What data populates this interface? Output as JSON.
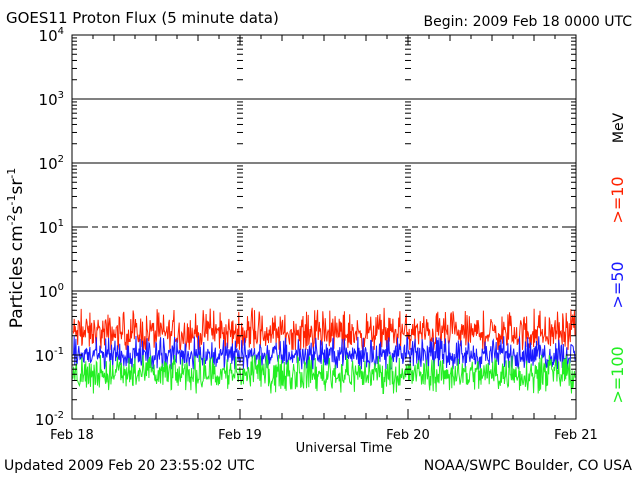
{
  "header": {
    "title": "GOES11 Proton Flux (5 minute data)",
    "begin": "Begin: 2009 Feb 18 0000 UTC"
  },
  "footer": {
    "updated": "Updated 2009 Feb 20 23:55:02 UTC",
    "credit": "NOAA/SWPC Boulder, CO USA"
  },
  "colors": {
    "ge10": "#ff2200",
    "ge50": "#1a1aff",
    "ge100": "#22ee22",
    "mev_label": "#000000"
  },
  "chart_data": {
    "type": "line",
    "title": "GOES11 Proton Flux (5 minute data)",
    "xlabel": "Universal Time",
    "ylabel": "Particles cm⁻²s⁻¹sr⁻¹",
    "y_scale": "log",
    "ylim": [
      0.01,
      10000
    ],
    "y_ticks": [
      {
        "value": 0.01,
        "base": "10",
        "exp": "-2"
      },
      {
        "value": 0.1,
        "base": "10",
        "exp": "-1"
      },
      {
        "value": 1,
        "base": "10",
        "exp": "0"
      },
      {
        "value": 10,
        "base": "10",
        "exp": "1"
      },
      {
        "value": 100,
        "base": "10",
        "exp": "2"
      },
      {
        "value": 1000,
        "base": "10",
        "exp": "3"
      },
      {
        "value": 10000,
        "base": "10",
        "exp": "4"
      }
    ],
    "x_ticks": [
      "Feb 18",
      "Feb 19",
      "Feb 20",
      "Feb 21"
    ],
    "xlim": [
      "2009-02-18",
      "2009-02-21"
    ],
    "threshold_lines": [
      {
        "value": 10,
        "style": "dashed"
      },
      {
        "value": 1,
        "style": "solid"
      },
      {
        "value": 100,
        "style": "solid"
      },
      {
        "value": 1000,
        "style": "solid"
      }
    ],
    "energy_unit": "MeV",
    "series": [
      {
        "name": ">=10",
        "color_key": "ge10",
        "typical": 0.22,
        "min": 0.12,
        "max": 0.55
      },
      {
        "name": ">=50",
        "color_key": "ge50",
        "typical": 0.1,
        "min": 0.06,
        "max": 0.2
      },
      {
        "name": ">=100",
        "color_key": "ge100",
        "typical": 0.05,
        "min": 0.025,
        "max": 0.1
      }
    ],
    "grid": false
  }
}
